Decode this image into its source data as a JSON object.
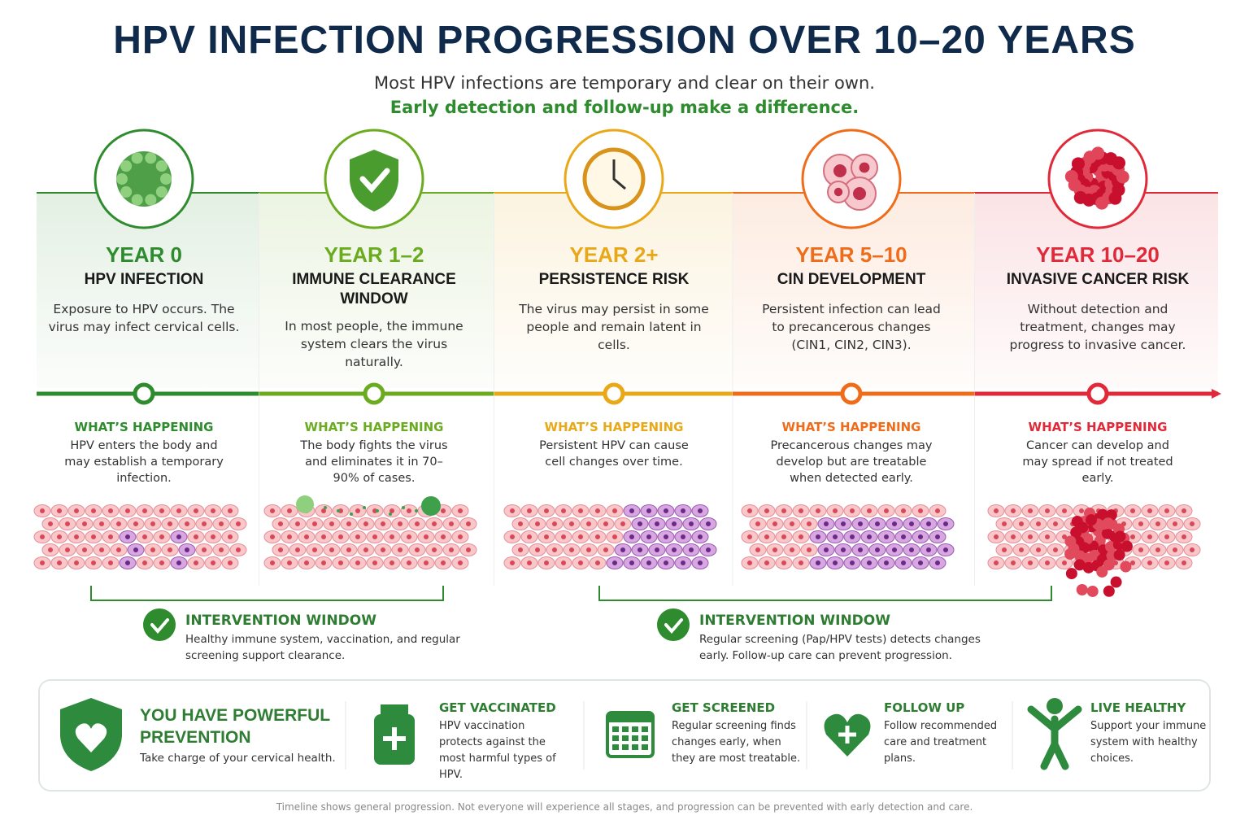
{
  "header": {
    "title": "HPV INFECTION PROGRESSION OVER 10–20 YEARS",
    "subtitle": "Most HPV infections are temporary and clear on their own.",
    "tagline": "Early detection and follow-up make a difference."
  },
  "stages": [
    {
      "year": "YEAR 0",
      "name": "HPV INFECTION",
      "description": "Exposure to HPV occurs. The virus may infect cervical cells.",
      "happening_label": "WHAT’S HAPPENING",
      "happening_text": "HPV enters the body and may establish a temporary infection."
    },
    {
      "year": "YEAR 1–2",
      "name": "IMMUNE CLEARANCE WINDOW",
      "description": "In most people, the immune system clears the virus naturally.",
      "happening_label": "WHAT’S HAPPENING",
      "happening_text": "The body fights the virus and eliminates it in 70–90% of cases."
    },
    {
      "year": "YEAR 2+",
      "name": "PERSISTENCE RISK",
      "description": "The virus may persist in some people and remain latent in cells.",
      "happening_label": "WHAT’S HAPPENING",
      "happening_text": "Persistent HPV can cause cell changes over time."
    },
    {
      "year": "YEAR 5–10",
      "name": "CIN DEVELOPMENT",
      "description": "Persistent infection can lead to precancerous changes (CIN1, CIN2, CIN3).",
      "happening_label": "WHAT’S HAPPENING",
      "happening_text": "Precancerous changes may develop but are treatable when detected early."
    },
    {
      "year": "YEAR 10–20",
      "name": "INVASIVE CANCER RISK",
      "description": "Without detection and treatment, changes may progress to invasive cancer.",
      "happening_label": "WHAT’S HAPPENING",
      "happening_text": "Cancer can develop and may spread if not treated early."
    }
  ],
  "interventions": [
    {
      "title": "INTERVENTION WINDOW",
      "text": "Healthy immune system, vaccination, and regular screening support clearance."
    },
    {
      "title": "INTERVENTION WINDOW",
      "text": "Regular screening (Pap/HPV tests) detects changes early. Follow-up care can prevent progression."
    }
  ],
  "prevention": {
    "headline": "YOU HAVE POWERFUL PREVENTION",
    "tagline": "Take charge of your cervical health.",
    "items": [
      {
        "title": "GET VACCINATED",
        "text": "HPV vaccination protects against the most harmful types of HPV."
      },
      {
        "title": "GET SCREENED",
        "text": "Regular screening finds changes early, when they are most treatable."
      },
      {
        "title": "FOLLOW UP",
        "text": "Follow recommended care and treatment plans."
      },
      {
        "title": "LIVE HEALTHY",
        "text": "Support your immune system with healthy choices."
      }
    ]
  },
  "footnote": "Timeline shows general progression. Not everyone will experience all stages, and progression can be prevented with early detection and care."
}
